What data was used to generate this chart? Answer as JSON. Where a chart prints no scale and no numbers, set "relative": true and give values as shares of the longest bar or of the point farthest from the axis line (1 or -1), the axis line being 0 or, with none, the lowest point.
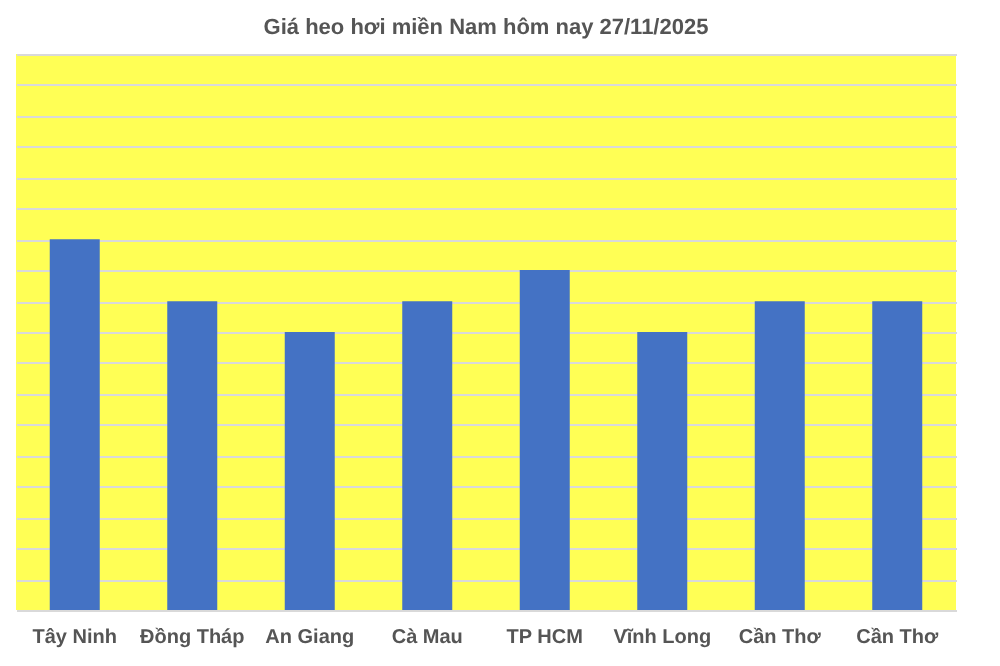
{
  "chart_data": {
    "type": "bar",
    "title": "Giá heo hơi miền Nam hôm nay 27/11/2025",
    "categories": [
      "Tây Ninh",
      "Đồng Tháp",
      "An Giang",
      "Cà Mau",
      "TP HCM",
      "Vĩnh Long",
      "Cần Thơ",
      "Cần Thơ"
    ],
    "values": [
      1,
      0.833,
      0.75,
      0.833,
      0.917,
      0.75,
      0.833,
      0.833
    ],
    "color": "#4472c4",
    "relative": true,
    "grid": "y"
  }
}
